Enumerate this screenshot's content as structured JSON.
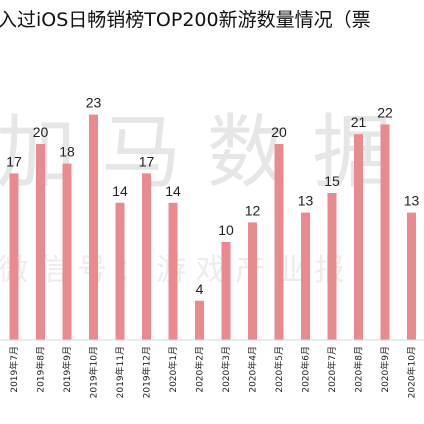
{
  "title": "入过iOS日畅销榜TOP200新游数量情况（票",
  "watermark": {
    "main": "加 马 数 据",
    "sub": "微 信 号 ： 游 戏 产 业 报"
  },
  "colors": {
    "bar": "#e98a90",
    "axis": "#d9d9d9",
    "text": "#222222"
  },
  "chart_data": {
    "type": "bar",
    "title": "入过iOS日畅销榜TOP200新游数量情况（票",
    "categories": [
      "2019年7月",
      "2019年8月",
      "2019年9月",
      "2019年10月",
      "2019年11月",
      "2019年12月",
      "2020年1月",
      "2020年2月",
      "2020年3月",
      "2020年4月",
      "2020年5月",
      "2020年6月",
      "2020年7月",
      "2020年8月",
      "2020年9月",
      "2020年10月"
    ],
    "values": [
      17,
      20,
      18,
      23,
      14,
      17,
      14,
      4,
      10,
      12,
      20,
      13,
      15,
      21,
      22,
      13
    ],
    "ylim": [
      0,
      25
    ],
    "grid": false,
    "legend": "none"
  }
}
